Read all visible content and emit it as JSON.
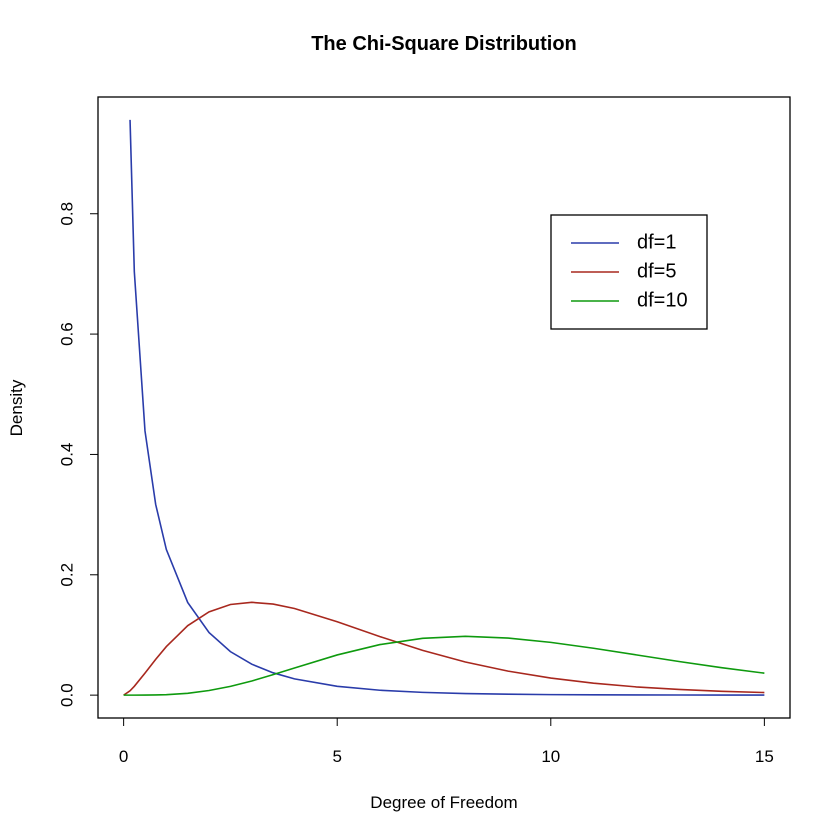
{
  "chart_data": {
    "type": "line",
    "title": "The Chi-Square Distribution",
    "x_label": "Degree of Freedom",
    "y_label": "Density",
    "x": [
      0,
      0.15,
      0.25,
      0.5,
      0.75,
      1,
      1.5,
      2,
      2.5,
      3,
      3.5,
      4,
      5,
      6,
      7,
      8,
      9,
      10,
      11,
      12,
      13,
      14,
      15
    ],
    "series": [
      {
        "name": "df=1",
        "color": "#2a3caa",
        "values": [
          null,
          0.956,
          0.704,
          0.439,
          0.317,
          0.242,
          0.154,
          0.104,
          0.0723,
          0.0514,
          0.0371,
          0.027,
          0.0146,
          0.0081,
          0.0046,
          0.0026,
          0.0015,
          0.00085,
          0.0005,
          0.0003,
          0.0002,
          0.0001,
          0.0001
        ]
      },
      {
        "name": "df=5",
        "color": "#a8281e",
        "values": [
          0,
          0.0072,
          0.0147,
          0.0366,
          0.0594,
          0.0807,
          0.1154,
          0.1384,
          0.1506,
          0.1542,
          0.1513,
          0.144,
          0.122,
          0.0973,
          0.0744,
          0.0551,
          0.0399,
          0.0283,
          0.0198,
          0.0137,
          0.0094,
          0.0064,
          0.0043
        ]
      },
      {
        "name": "df=10",
        "color": "#0e9a0e",
        "values": [
          0,
          0,
          0,
          6e-05,
          0.00028,
          0.00079,
          0.0031,
          0.0077,
          0.0146,
          0.0235,
          0.034,
          0.0451,
          0.0668,
          0.084,
          0.0944,
          0.0977,
          0.0949,
          0.0877,
          0.0779,
          0.0669,
          0.0559,
          0.0456,
          0.0365
        ]
      }
    ],
    "xlim": [
      -0.6,
      15.6
    ],
    "ylim": [
      -0.038,
      0.994
    ],
    "xticks": [
      0,
      5,
      10,
      15
    ],
    "yticks": [
      {
        "value": 0,
        "label": "0.0"
      },
      {
        "value": 0.2,
        "label": "0.2"
      },
      {
        "value": 0.4,
        "label": "0.4"
      },
      {
        "value": 0.6,
        "label": "0.6"
      },
      {
        "value": 0.8,
        "label": "0.8"
      }
    ],
    "legend": "top-right",
    "grid": false
  }
}
